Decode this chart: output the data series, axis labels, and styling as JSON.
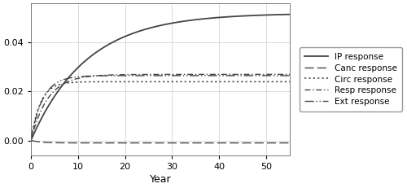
{
  "title": "",
  "xlabel": "Year",
  "ylabel": "",
  "xlim": [
    0,
    55
  ],
  "ylim": [
    -0.006,
    0.056
  ],
  "xticks": [
    0,
    10,
    20,
    30,
    40,
    50
  ],
  "yticks": [
    0.0,
    0.02,
    0.04
  ],
  "color": "#444444",
  "legend_labels": [
    "IP response",
    "Canc response",
    "Circ response",
    "Resp response",
    "Ext response"
  ],
  "IP_asymptote": 0.052,
  "IP_rate": 0.085,
  "Canc_asymptote": -0.001,
  "Canc_level": 0.0002,
  "Circ_asymptote": 0.024,
  "Circ_rate": 0.5,
  "Resp_asymptote": 0.027,
  "Resp_rate": 0.28,
  "Ext_asymptote": 0.0265,
  "Ext_rate": 0.4,
  "figsize": [
    5.0,
    2.31
  ],
  "dpi": 100
}
